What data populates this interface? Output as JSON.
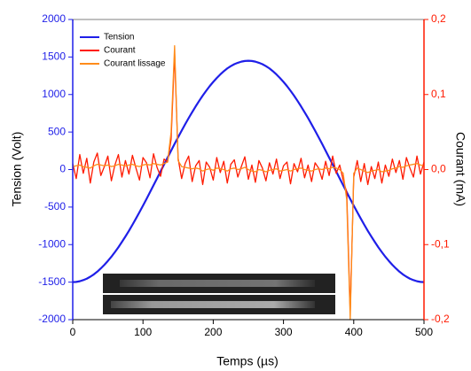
{
  "chart_data": {
    "type": "line",
    "xlabel": "Temps (µs)",
    "ylabel": "Tension (Volt)",
    "y2label": "Courant (mA)",
    "x": [
      0,
      5,
      10,
      15,
      20,
      25,
      30,
      35,
      40,
      45,
      50,
      55,
      60,
      65,
      70,
      75,
      80,
      85,
      90,
      95,
      100,
      105,
      110,
      115,
      120,
      125,
      130,
      135,
      140,
      145,
      150,
      155,
      160,
      165,
      170,
      175,
      180,
      185,
      190,
      195,
      200,
      205,
      210,
      215,
      220,
      225,
      230,
      235,
      240,
      245,
      250,
      255,
      260,
      265,
      270,
      275,
      280,
      285,
      290,
      295,
      300,
      305,
      310,
      315,
      320,
      325,
      330,
      335,
      340,
      345,
      350,
      355,
      360,
      365,
      370,
      375,
      380,
      385,
      390,
      395,
      400,
      405,
      410,
      415,
      420,
      425,
      430,
      435,
      440,
      445,
      450,
      455,
      460,
      465,
      470,
      475,
      480,
      485,
      490,
      495,
      500
    ],
    "series": [
      {
        "name": "Tension",
        "color": "#1f1fe8",
        "values": [
          -1500,
          -1497,
          -1488,
          -1473,
          -1454,
          -1428,
          -1397,
          -1360,
          -1317,
          -1270,
          -1218,
          -1162,
          -1100,
          -1035,
          -965,
          -892,
          -816,
          -736,
          -653,
          -568,
          -481,
          -392,
          -301,
          -209,
          -118,
          -25,
          68,
          159,
          251,
          342,
          431,
          518,
          603,
          686,
          765,
          842,
          915,
          985,
          1050,
          1112,
          1168,
          1220,
          1267,
          1310,
          1348,
          1378,
          1404,
          1423,
          1438,
          1447,
          1450,
          1447,
          1438,
          1423,
          1404,
          1378,
          1348,
          1310,
          1267,
          1220,
          1168,
          1112,
          1050,
          985,
          915,
          842,
          765,
          686,
          603,
          518,
          431,
          342,
          251,
          159,
          68,
          -25,
          -118,
          -209,
          -301,
          -392,
          -481,
          -568,
          -653,
          -736,
          -816,
          -892,
          -965,
          -1035,
          -1100,
          -1162,
          -1218,
          -1270,
          -1317,
          -1360,
          -1397,
          -1428,
          -1454,
          -1473,
          -1488,
          -1497,
          -1500
        ]
      },
      {
        "name": "Courant",
        "color": "#ff1a00",
        "axis": "y2",
        "values": [
          0.008,
          -0.012,
          0.02,
          -0.005,
          0.015,
          -0.018,
          0.01,
          0.022,
          -0.008,
          0.004,
          0.018,
          -0.015,
          0.006,
          0.02,
          -0.01,
          0.012,
          -0.006,
          0.019,
          0.002,
          -0.014,
          0.016,
          0.009,
          -0.011,
          0.021,
          0.003,
          -0.009,
          0.014,
          0.01,
          0.04,
          0.155,
          0.015,
          -0.012,
          0.008,
          0.018,
          -0.016,
          0.005,
          0.012,
          -0.02,
          0.01,
          0.003,
          -0.014,
          0.016,
          -0.004,
          0.011,
          -0.018,
          0.007,
          0.013,
          -0.01,
          0.004,
          0.017,
          -0.013,
          0.006,
          -0.017,
          0.012,
          0.002,
          -0.015,
          0.009,
          -0.006,
          0.014,
          -0.012,
          0.005,
          0.01,
          -0.019,
          0.008,
          -0.003,
          0.015,
          -0.011,
          0.006,
          -0.016,
          0.009,
          0.002,
          -0.013,
          0.011,
          -0.008,
          0.018,
          -0.005,
          0.006,
          -0.014,
          -0.03,
          -0.19,
          -0.01,
          0.012,
          -0.016,
          0.008,
          -0.02,
          0.004,
          -0.012,
          0.01,
          -0.018,
          0.006,
          -0.009,
          0.014,
          -0.004,
          0.012,
          -0.013,
          0.016,
          0.002,
          -0.01,
          0.018,
          -0.006,
          0.01
        ]
      },
      {
        "name": "Courant lissage",
        "color": "#ff8c1a",
        "axis": "y2",
        "values": [
          0.004,
          0.005,
          0.006,
          0.004,
          0.003,
          0.002,
          0.005,
          0.007,
          0.006,
          0.005,
          0.006,
          0.004,
          0.005,
          0.007,
          0.006,
          0.005,
          0.006,
          0.007,
          0.005,
          0.004,
          0.006,
          0.007,
          0.006,
          0.008,
          0.007,
          0.006,
          0.008,
          0.01,
          0.05,
          0.165,
          0.012,
          0.004,
          0.003,
          0.002,
          0.001,
          0.002,
          0.001,
          -0.002,
          0.0,
          0.001,
          -0.001,
          0.002,
          0.001,
          0.0,
          -0.002,
          0.001,
          0.002,
          0.0,
          0.001,
          0.003,
          0.0,
          -0.002,
          -0.003,
          0.0,
          -0.001,
          -0.003,
          -0.001,
          0.0,
          0.001,
          -0.002,
          -0.001,
          0.0,
          -0.002,
          0.0,
          0.001,
          0.002,
          0.0,
          -0.001,
          -0.002,
          0.0,
          0.001,
          0.0,
          0.002,
          0.001,
          0.003,
          0.002,
          0.0,
          -0.005,
          -0.04,
          -0.2,
          -0.005,
          0.002,
          0.0,
          -0.002,
          -0.004,
          -0.002,
          -0.001,
          0.0,
          -0.003,
          -0.002,
          -0.001,
          0.001,
          0.002,
          0.004,
          0.003,
          0.005,
          0.006,
          0.007,
          0.008,
          0.006,
          0.005
        ]
      }
    ],
    "xlim": [
      0,
      500
    ],
    "xticks": [
      0,
      100,
      200,
      300,
      400,
      500
    ],
    "ylim": [
      -2000,
      2000
    ],
    "yticks": [
      -2000,
      -1500,
      -1000,
      -500,
      0,
      500,
      1000,
      1500,
      2000
    ],
    "y2lim": [
      -0.2,
      0.2
    ],
    "y2ticks": [
      {
        "value": -0.2,
        "label": "-0,2"
      },
      {
        "value": -0.1,
        "label": "-0,1"
      },
      {
        "value": 0,
        "label": "0,0"
      },
      {
        "value": 0.1,
        "label": "0,1"
      },
      {
        "value": 0.2,
        "label": "0,2"
      }
    ],
    "legend": "upper left",
    "ycolor": "#1f1fe8",
    "y2color": "#ff1a00"
  }
}
